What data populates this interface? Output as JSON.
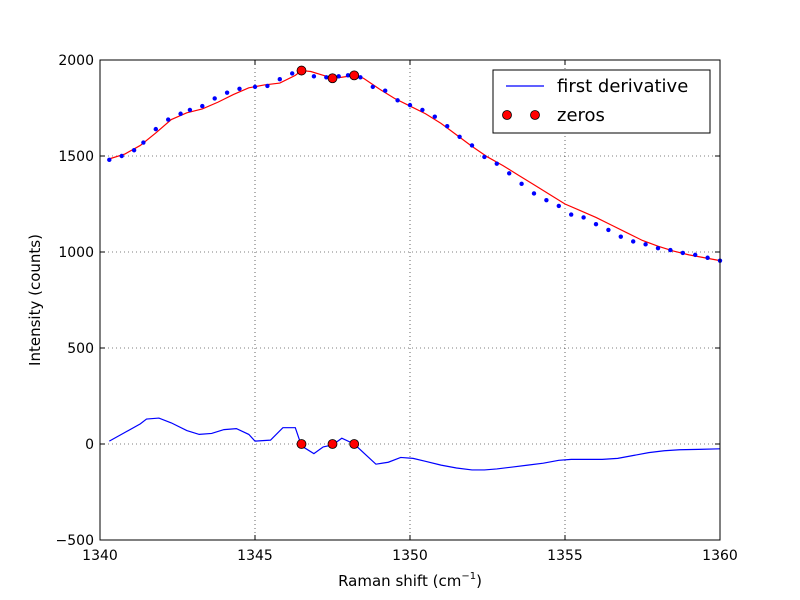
{
  "chart_data": {
    "type": "line",
    "xlabel": "Raman shift (cm",
    "xlabel_sup": "−1",
    "xlabel_close": ")",
    "ylabel": "Intensity (counts)",
    "xlim": [
      1340,
      1360
    ],
    "ylim": [
      -500,
      2000
    ],
    "x_ticks": [
      1340,
      1345,
      1350,
      1355,
      1360
    ],
    "y_ticks": [
      -500,
      0,
      500,
      1000,
      1500,
      2000
    ],
    "x_tick_labels": [
      "1340",
      "1345",
      "1350",
      "1355",
      "1360"
    ],
    "y_tick_labels": [
      "−500",
      "0",
      "500",
      "1000",
      "1500",
      "2000"
    ],
    "grid": true,
    "legend_position": "top-right",
    "legend": [
      {
        "label": "first derivative",
        "style": "line",
        "color": "#0000ff"
      },
      {
        "label": "zeros",
        "style": "marker",
        "color": "#ff0000"
      }
    ],
    "colors": {
      "spectrum_points": "#0000ff",
      "fit_line": "#ff0000",
      "derivative_line": "#0000ff",
      "zeros_marker": "#ff0000"
    },
    "spectrum_points": {
      "x": [
        1340.3,
        1340.7,
        1341.1,
        1341.4,
        1341.8,
        1342.2,
        1342.6,
        1342.9,
        1343.3,
        1343.7,
        1344.1,
        1344.5,
        1345.0,
        1345.4,
        1345.8,
        1346.2,
        1346.5,
        1346.9,
        1347.3,
        1347.7,
        1348.0,
        1348.4,
        1348.8,
        1349.2,
        1349.6,
        1350.0,
        1350.4,
        1350.8,
        1351.2,
        1351.6,
        1352.0,
        1352.4,
        1352.8,
        1353.2,
        1353.6,
        1354.0,
        1354.4,
        1354.8,
        1355.2,
        1355.6,
        1356.0,
        1356.4,
        1356.8,
        1357.2,
        1357.6,
        1358.0,
        1358.4,
        1358.8,
        1359.2,
        1359.6,
        1360.0
      ],
      "y": [
        1480,
        1500,
        1530,
        1570,
        1640,
        1690,
        1720,
        1740,
        1760,
        1800,
        1830,
        1850,
        1860,
        1865,
        1900,
        1930,
        1945,
        1915,
        1910,
        1915,
        1920,
        1910,
        1860,
        1840,
        1790,
        1765,
        1740,
        1705,
        1655,
        1600,
        1555,
        1495,
        1460,
        1410,
        1355,
        1305,
        1270,
        1240,
        1195,
        1180,
        1145,
        1115,
        1080,
        1055,
        1040,
        1020,
        1010,
        995,
        985,
        970,
        955
      ]
    },
    "fit_line": {
      "x": [
        1340.3,
        1340.8,
        1341.3,
        1341.8,
        1342.3,
        1342.8,
        1343.3,
        1343.8,
        1344.3,
        1344.8,
        1345.3,
        1345.8,
        1346.3,
        1346.5,
        1346.8,
        1347.2,
        1347.5,
        1347.8,
        1348.2,
        1348.5,
        1349.0,
        1349.5,
        1350.0,
        1350.5,
        1351.0,
        1351.5,
        1352.0,
        1352.5,
        1353.0,
        1353.5,
        1354.0,
        1354.5,
        1355.0,
        1355.5,
        1356.0,
        1356.5,
        1357.0,
        1357.5,
        1358.0,
        1358.5,
        1359.0,
        1359.5,
        1360.0
      ],
      "y": [
        1485,
        1510,
        1555,
        1620,
        1690,
        1725,
        1745,
        1780,
        1820,
        1855,
        1870,
        1880,
        1920,
        1945,
        1940,
        1920,
        1905,
        1910,
        1920,
        1905,
        1850,
        1800,
        1760,
        1720,
        1670,
        1610,
        1550,
        1495,
        1450,
        1400,
        1350,
        1300,
        1250,
        1215,
        1180,
        1140,
        1100,
        1060,
        1030,
        1005,
        985,
        970,
        955
      ]
    },
    "series": [
      {
        "name": "first derivative",
        "x": [
          1340.3,
          1340.8,
          1341.3,
          1341.5,
          1341.9,
          1342.3,
          1342.8,
          1343.2,
          1343.6,
          1344.0,
          1344.4,
          1344.8,
          1345.0,
          1345.5,
          1345.9,
          1346.3,
          1346.5,
          1346.9,
          1347.2,
          1347.5,
          1347.8,
          1348.2,
          1348.6,
          1348.9,
          1349.3,
          1349.7,
          1350.1,
          1350.5,
          1351.0,
          1351.5,
          1352.0,
          1352.4,
          1352.8,
          1353.3,
          1353.8,
          1354.3,
          1354.8,
          1355.2,
          1355.7,
          1356.2,
          1356.7,
          1357.2,
          1357.7,
          1358.2,
          1358.7,
          1359.3,
          1360.0
        ],
        "y": [
          15,
          60,
          105,
          130,
          135,
          110,
          70,
          50,
          55,
          75,
          80,
          50,
          15,
          20,
          85,
          85,
          -10,
          -50,
          -15,
          -5,
          30,
          0,
          -60,
          -105,
          -95,
          -70,
          -75,
          -90,
          -110,
          -125,
          -135,
          -135,
          -130,
          -120,
          -110,
          -100,
          -85,
          -80,
          -80,
          -80,
          -75,
          -60,
          -45,
          -35,
          -30,
          -28,
          -25
        ]
      }
    ],
    "zeros": {
      "x": [
        1346.5,
        1347.5,
        1348.2
      ],
      "y_derivative": [
        0,
        0,
        0
      ],
      "y_spectrum": [
        1945,
        1905,
        1920
      ]
    }
  }
}
